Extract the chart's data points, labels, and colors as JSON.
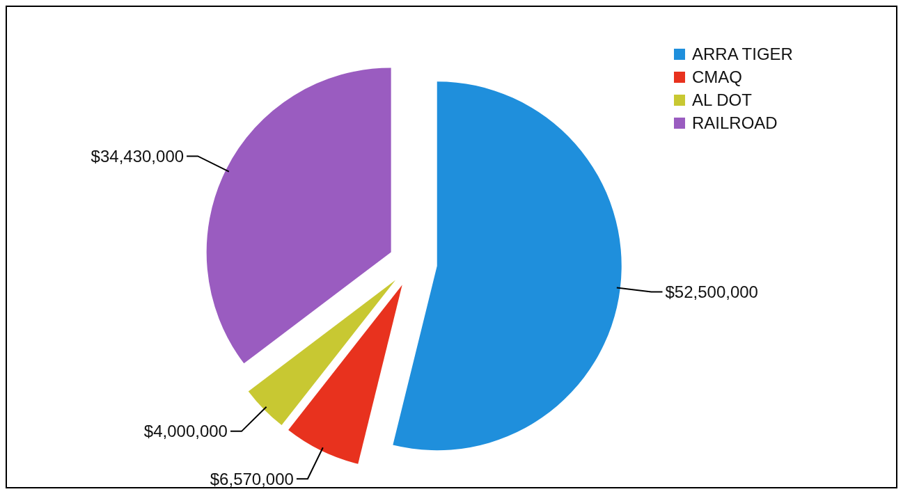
{
  "chart_data": {
    "type": "pie",
    "categories": [
      "ARRA TIGER",
      "CMAQ",
      "AL DOT",
      "RAILROAD"
    ],
    "values": [
      52500000,
      6570000,
      4000000,
      34430000
    ],
    "colors": [
      "#1f8fdc",
      "#e8321e",
      "#c8c832",
      "#9a5cc0"
    ],
    "value_labels": [
      "$52,500,000",
      "$6,570,000",
      "$4,000,000",
      "$34,430,000"
    ],
    "legend": "top right"
  }
}
